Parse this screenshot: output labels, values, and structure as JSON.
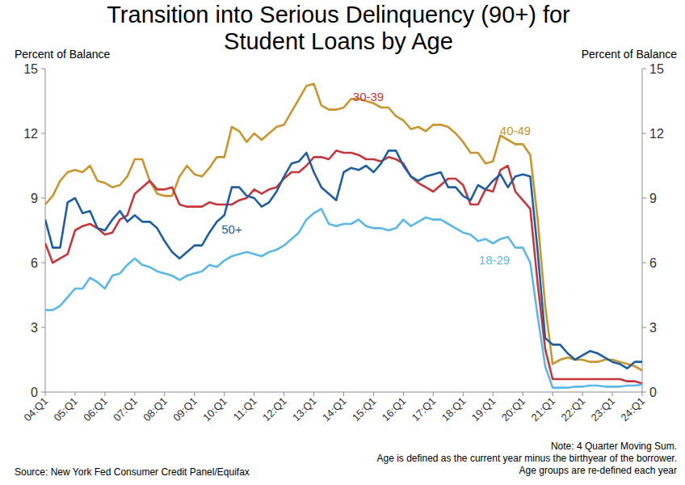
{
  "chart_data": {
    "type": "line",
    "title": "Transition into Serious Delinquency (90+) for Student Loans by Age",
    "y_label": "Percent of Balance",
    "y2_label": "Percent of Balance",
    "notes": [
      "Note: 4 Quarter Moving Sum.",
      "Age is defined as the current year minus the birthyear of the borrower.",
      "Age groups are re-defined each year"
    ],
    "source": "Source: New York Fed Consumer Credit Panel/Equifax",
    "categories": [
      "04:Q1",
      null,
      null,
      null,
      "05:Q1",
      null,
      null,
      null,
      "06:Q1",
      null,
      null,
      null,
      "07:Q1",
      null,
      null,
      null,
      "08:Q1",
      null,
      null,
      null,
      "09:Q1",
      null,
      null,
      null,
      "10:Q1",
      null,
      null,
      null,
      "11:Q1",
      null,
      null,
      null,
      "12:Q1",
      null,
      null,
      null,
      "13:Q1",
      null,
      null,
      null,
      "14:Q1",
      null,
      null,
      null,
      "15:Q1",
      null,
      null,
      null,
      "16:Q1",
      null,
      null,
      null,
      "17:Q1",
      null,
      null,
      null,
      "18:Q1",
      null,
      null,
      null,
      "19:Q1",
      null,
      null,
      null,
      "20:Q1",
      null,
      null,
      null,
      "21:Q1",
      null,
      null,
      null,
      "22:Q1",
      null,
      null,
      null,
      "23:Q1",
      null,
      null,
      null,
      "24:Q1"
    ],
    "series": [
      {
        "name": "40-49",
        "color": "#c8952e",
        "values": [
          8.7,
          9.1,
          9.8,
          10.2,
          10.3,
          10.2,
          10.5,
          9.8,
          9.7,
          9.5,
          9.6,
          10.0,
          10.8,
          10.8,
          9.8,
          9.2,
          9.1,
          9.1,
          10.0,
          10.5,
          10.1,
          10.0,
          10.4,
          10.9,
          10.9,
          12.3,
          12.1,
          11.6,
          12.0,
          11.7,
          12.0,
          12.3,
          12.4,
          13.0,
          13.6,
          14.2,
          14.3,
          13.3,
          13.1,
          13.1,
          13.2,
          13.6,
          13.6,
          13.5,
          13.4,
          13.2,
          13.2,
          12.8,
          12.6,
          12.2,
          12.3,
          12.1,
          12.4,
          12.4,
          12.3,
          12.0,
          11.6,
          11.1,
          11.1,
          10.6,
          10.7,
          11.9,
          11.7,
          11.5,
          11.5,
          11.0,
          8.0,
          4.0,
          1.3,
          1.5,
          1.6,
          1.5,
          1.5,
          1.4,
          1.4,
          1.5,
          1.5,
          1.4,
          1.3,
          1.2,
          1.0
        ]
      },
      {
        "name": "30-39",
        "color": "#c4383d",
        "values": [
          6.9,
          6.0,
          6.2,
          6.4,
          7.5,
          7.7,
          7.8,
          7.6,
          7.3,
          7.4,
          8.0,
          8.2,
          9.2,
          9.5,
          9.8,
          9.4,
          9.4,
          9.5,
          8.7,
          8.6,
          8.6,
          8.6,
          8.8,
          8.7,
          8.7,
          8.7,
          8.9,
          9.0,
          9.4,
          9.2,
          9.4,
          9.5,
          9.9,
          10.2,
          10.2,
          10.5,
          10.9,
          10.9,
          10.8,
          11.2,
          11.1,
          11.1,
          11.0,
          10.8,
          10.8,
          10.7,
          10.9,
          10.8,
          10.6,
          10.0,
          9.7,
          9.5,
          9.3,
          9.6,
          9.9,
          9.9,
          9.6,
          8.7,
          8.7,
          9.4,
          9.3,
          10.3,
          10.5,
          9.3,
          8.9,
          8.5,
          5.0,
          2.0,
          0.6,
          0.6,
          0.6,
          0.6,
          0.6,
          0.6,
          0.6,
          0.6,
          0.6,
          0.6,
          0.5,
          0.5,
          0.4
        ]
      },
      {
        "name": "50+",
        "color": "#1f5f9f",
        "values": [
          8.0,
          6.7,
          6.7,
          8.8,
          9.0,
          8.3,
          8.4,
          7.6,
          7.5,
          8.0,
          8.4,
          7.9,
          8.2,
          7.9,
          7.9,
          7.6,
          7.0,
          6.5,
          6.2,
          6.5,
          6.8,
          6.8,
          7.4,
          7.9,
          8.2,
          9.5,
          9.5,
          9.1,
          9.0,
          8.6,
          8.8,
          9.3,
          10.0,
          10.6,
          10.7,
          11.1,
          10.2,
          9.5,
          9.2,
          8.9,
          10.2,
          10.4,
          10.3,
          10.5,
          10.2,
          10.6,
          11.2,
          11.2,
          10.5,
          10.0,
          9.8,
          10.0,
          10.1,
          10.2,
          9.5,
          9.5,
          9.1,
          8.9,
          9.6,
          9.4,
          9.8,
          10.1,
          9.5,
          10.0,
          10.1,
          10.0,
          6.5,
          2.5,
          2.2,
          2.2,
          1.8,
          1.5,
          1.7,
          1.9,
          1.8,
          1.6,
          1.4,
          1.3,
          1.1,
          1.4,
          1.4
        ]
      },
      {
        "name": "18-29",
        "color": "#5db8e6",
        "values": [
          3.8,
          3.8,
          4.0,
          4.4,
          4.8,
          4.8,
          5.3,
          5.1,
          4.8,
          5.4,
          5.5,
          5.9,
          6.2,
          5.9,
          5.8,
          5.6,
          5.5,
          5.4,
          5.2,
          5.4,
          5.5,
          5.6,
          5.9,
          5.8,
          6.1,
          6.3,
          6.4,
          6.5,
          6.4,
          6.3,
          6.5,
          6.6,
          6.8,
          7.1,
          7.4,
          8.0,
          8.3,
          8.5,
          7.8,
          7.7,
          7.8,
          7.8,
          8.0,
          7.7,
          7.6,
          7.6,
          7.5,
          7.6,
          8.0,
          7.7,
          7.9,
          8.1,
          8.0,
          8.0,
          7.8,
          7.6,
          7.4,
          7.3,
          7.0,
          7.1,
          6.9,
          7.1,
          7.2,
          6.7,
          6.7,
          6.0,
          3.5,
          1.2,
          0.2,
          0.2,
          0.2,
          0.25,
          0.25,
          0.3,
          0.3,
          0.25,
          0.25,
          0.25,
          0.3,
          0.3,
          0.35
        ]
      }
    ],
    "ylim": [
      0,
      15
    ],
    "yticks": [
      0,
      3,
      6,
      9,
      12,
      15
    ],
    "y2lim": [
      0,
      15
    ],
    "y2ticks": [
      0,
      3,
      6,
      9,
      12,
      15
    ],
    "grid": false
  }
}
